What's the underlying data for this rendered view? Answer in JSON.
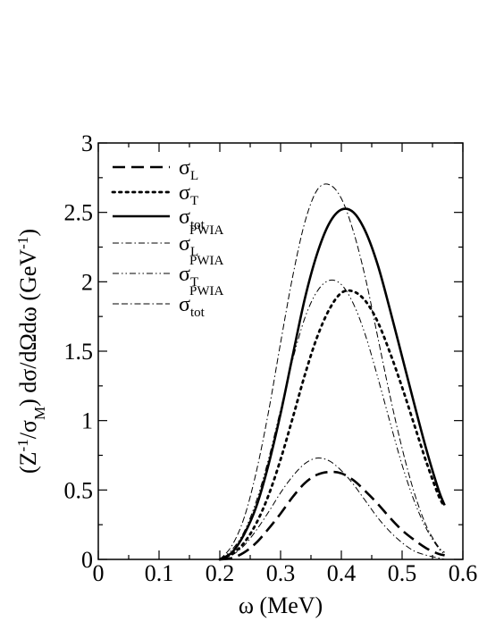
{
  "chart_data": {
    "type": "line",
    "title": "",
    "xlabel": "ω  (MeV)",
    "ylabel": "(Z⁻¹/σM) dσ/dΩdω  (GeV⁻¹)",
    "ylabel_parts": {
      "a": "(Z",
      "a_sup": "-1",
      "b": "/σ",
      "b_sub": "M",
      "c": ") dσ/dΩdω  (GeV",
      "c_sup": "-1",
      "d": ")"
    },
    "xlim": [
      0,
      0.6
    ],
    "ylim": [
      0,
      3
    ],
    "xticks": [
      "0",
      "0.1",
      "0.2",
      "0.3",
      "0.4",
      "0.5",
      "0.6"
    ],
    "yticks": [
      "0",
      "0.5",
      "1",
      "1.5",
      "2",
      "2.5",
      "3"
    ],
    "grid": false,
    "legend_position": "top-left",
    "series": [
      {
        "name": "σL",
        "legend": {
          "base": "σ",
          "sub": "L",
          "sup": ""
        },
        "style": "dash",
        "x": [
          0.2,
          0.22,
          0.24,
          0.26,
          0.28,
          0.3,
          0.32,
          0.34,
          0.36,
          0.38,
          0.4,
          0.42,
          0.44,
          0.46,
          0.48,
          0.5,
          0.52,
          0.54,
          0.56,
          0.57
        ],
        "y": [
          0.0,
          0.01,
          0.05,
          0.12,
          0.22,
          0.33,
          0.45,
          0.55,
          0.61,
          0.63,
          0.62,
          0.57,
          0.49,
          0.4,
          0.3,
          0.21,
          0.14,
          0.08,
          0.04,
          0.03
        ]
      },
      {
        "name": "σT",
        "legend": {
          "base": "σ",
          "sub": "T",
          "sup": ""
        },
        "style": "dot",
        "x": [
          0.2,
          0.22,
          0.24,
          0.26,
          0.28,
          0.3,
          0.32,
          0.34,
          0.36,
          0.38,
          0.4,
          0.42,
          0.44,
          0.46,
          0.48,
          0.5,
          0.52,
          0.54,
          0.56,
          0.57
        ],
        "y": [
          0.0,
          0.04,
          0.12,
          0.26,
          0.46,
          0.72,
          1.02,
          1.33,
          1.6,
          1.8,
          1.92,
          1.93,
          1.86,
          1.71,
          1.49,
          1.24,
          0.97,
          0.7,
          0.46,
          0.38
        ]
      },
      {
        "name": "σtot",
        "legend": {
          "base": "σ",
          "sub": "tot",
          "sup": ""
        },
        "style": "solid",
        "x": [
          0.2,
          0.22,
          0.24,
          0.26,
          0.28,
          0.3,
          0.32,
          0.34,
          0.36,
          0.38,
          0.4,
          0.42,
          0.44,
          0.46,
          0.48,
          0.5,
          0.52,
          0.54,
          0.56,
          0.57
        ],
        "y": [
          0.0,
          0.05,
          0.18,
          0.38,
          0.68,
          1.05,
          1.47,
          1.88,
          2.2,
          2.42,
          2.52,
          2.5,
          2.36,
          2.12,
          1.8,
          1.46,
          1.12,
          0.79,
          0.5,
          0.39
        ]
      },
      {
        "name": "σL PWIA",
        "legend": {
          "base": "σ",
          "sub": "L",
          "sup": "PWIA"
        },
        "style": "dashdot",
        "x": [
          0.2,
          0.22,
          0.24,
          0.26,
          0.28,
          0.3,
          0.32,
          0.34,
          0.36,
          0.38,
          0.4,
          0.42,
          0.44,
          0.46,
          0.48,
          0.5,
          0.52,
          0.54,
          0.56,
          0.57
        ],
        "y": [
          0.0,
          0.03,
          0.1,
          0.21,
          0.34,
          0.48,
          0.6,
          0.69,
          0.73,
          0.71,
          0.64,
          0.54,
          0.42,
          0.3,
          0.2,
          0.12,
          0.06,
          0.03,
          0.01,
          0.0
        ]
      },
      {
        "name": "σT PWIA",
        "legend": {
          "base": "σ",
          "sub": "T",
          "sup": "PWIA"
        },
        "style": "dashdotdot",
        "x": [
          0.2,
          0.22,
          0.24,
          0.26,
          0.28,
          0.3,
          0.32,
          0.34,
          0.36,
          0.38,
          0.4,
          0.42,
          0.44,
          0.46,
          0.48,
          0.5,
          0.52,
          0.54,
          0.56,
          0.57
        ],
        "y": [
          0.0,
          0.07,
          0.2,
          0.42,
          0.72,
          1.08,
          1.44,
          1.74,
          1.93,
          2.01,
          1.98,
          1.84,
          1.61,
          1.31,
          0.99,
          0.68,
          0.42,
          0.22,
          0.08,
          0.04
        ]
      },
      {
        "name": "σtot PWIA",
        "legend": {
          "base": "σ",
          "sub": "tot",
          "sup": "PWIA"
        },
        "style": "dashdash",
        "x": [
          0.2,
          0.22,
          0.24,
          0.26,
          0.28,
          0.3,
          0.32,
          0.34,
          0.36,
          0.38,
          0.4,
          0.42,
          0.44,
          0.46,
          0.48,
          0.5,
          0.52,
          0.54,
          0.56,
          0.57
        ],
        "y": [
          0.0,
          0.1,
          0.3,
          0.63,
          1.06,
          1.56,
          2.04,
          2.43,
          2.66,
          2.7,
          2.6,
          2.36,
          2.02,
          1.6,
          1.18,
          0.8,
          0.48,
          0.24,
          0.09,
          0.05
        ]
      }
    ]
  }
}
